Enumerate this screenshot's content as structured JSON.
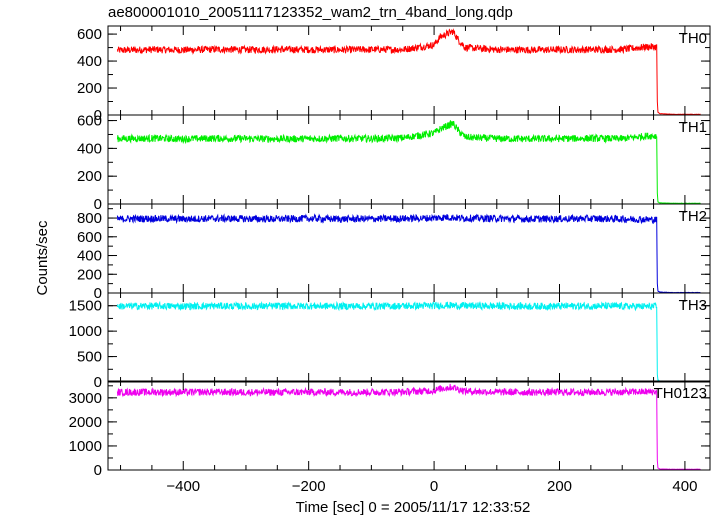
{
  "chart_data": {
    "type": "line",
    "title": "ae800001010_20051117123352_wam2_trn_4band_long.qdp",
    "xlabel": "Time [sec] 0 = 2005/11/17 12:33:52",
    "ylabel": "Counts/sec",
    "xlim": [
      -520,
      440
    ],
    "xticks": [
      -400,
      -200,
      0,
      200,
      400
    ],
    "grid": false,
    "panels": [
      {
        "name": "TH0",
        "color": "#ff0000",
        "ylim": [
          0,
          660
        ],
        "yticks": [
          0,
          200,
          400,
          600
        ],
        "x": [
          -505,
          -450,
          -400,
          -350,
          -300,
          -250,
          -200,
          -150,
          -100,
          -50,
          0,
          10,
          20,
          30,
          40,
          50,
          100,
          150,
          200,
          250,
          300,
          340,
          355,
          356,
          357,
          360,
          380,
          400,
          425
        ],
        "values": [
          480,
          485,
          482,
          487,
          484,
          486,
          485,
          483,
          486,
          485,
          520,
          580,
          600,
          620,
          550,
          500,
          485,
          483,
          484,
          485,
          487,
          505,
          505,
          100,
          20,
          10,
          5,
          5,
          5
        ]
      },
      {
        "name": "TH1",
        "color": "#00ee00",
        "ylim": [
          0,
          640
        ],
        "yticks": [
          0,
          200,
          400,
          600
        ],
        "x": [
          -505,
          -450,
          -400,
          -350,
          -300,
          -250,
          -200,
          -150,
          -100,
          -50,
          0,
          10,
          20,
          30,
          40,
          50,
          100,
          150,
          200,
          250,
          300,
          340,
          355,
          356,
          357,
          360,
          380,
          400,
          425
        ],
        "values": [
          470,
          472,
          468,
          472,
          470,
          468,
          470,
          472,
          470,
          475,
          510,
          540,
          560,
          580,
          520,
          480,
          470,
          468,
          470,
          472,
          470,
          490,
          490,
          80,
          15,
          8,
          5,
          5,
          5
        ]
      },
      {
        "name": "TH2",
        "color": "#0000dd",
        "ylim": [
          0,
          950
        ],
        "yticks": [
          0,
          200,
          400,
          600,
          800
        ],
        "x": [
          -505,
          -450,
          -400,
          -350,
          -300,
          -250,
          -200,
          -150,
          -100,
          -50,
          0,
          20,
          40,
          100,
          150,
          200,
          250,
          300,
          340,
          355,
          356,
          357,
          360,
          380,
          400,
          425
        ],
        "values": [
          790,
          795,
          790,
          795,
          792,
          790,
          795,
          790,
          792,
          795,
          800,
          810,
          800,
          795,
          790,
          792,
          795,
          790,
          785,
          780,
          100,
          20,
          10,
          5,
          5,
          5
        ]
      },
      {
        "name": "TH3",
        "color": "#00f0f0",
        "ylim": [
          0,
          1750
        ],
        "yticks": [
          0,
          500,
          1000,
          1500
        ],
        "x": [
          -505,
          -450,
          -400,
          -350,
          -300,
          -250,
          -200,
          -150,
          -100,
          -50,
          0,
          20,
          40,
          100,
          150,
          200,
          250,
          300,
          340,
          355,
          356,
          357,
          360,
          380,
          400,
          425
        ],
        "values": [
          1490,
          1495,
          1490,
          1495,
          1490,
          1492,
          1495,
          1490,
          1492,
          1495,
          1500,
          1510,
          1500,
          1495,
          1490,
          1492,
          1495,
          1490,
          1485,
          1480,
          150,
          40,
          20,
          10,
          10,
          10
        ]
      },
      {
        "name": "TH0123",
        "color": "#ee00ee",
        "ylim": [
          0,
          3700
        ],
        "yticks": [
          0,
          1000,
          2000,
          3000
        ],
        "x": [
          -505,
          -450,
          -400,
          -350,
          -300,
          -250,
          -200,
          -150,
          -100,
          -50,
          0,
          10,
          20,
          30,
          40,
          50,
          100,
          150,
          200,
          250,
          300,
          340,
          355,
          356,
          357,
          360,
          380,
          400,
          425
        ],
        "values": [
          3230,
          3240,
          3235,
          3240,
          3232,
          3230,
          3238,
          3235,
          3240,
          3245,
          3300,
          3380,
          3420,
          3450,
          3350,
          3280,
          3240,
          3232,
          3235,
          3238,
          3240,
          3250,
          3250,
          400,
          80,
          40,
          30,
          30,
          30
        ]
      }
    ]
  }
}
